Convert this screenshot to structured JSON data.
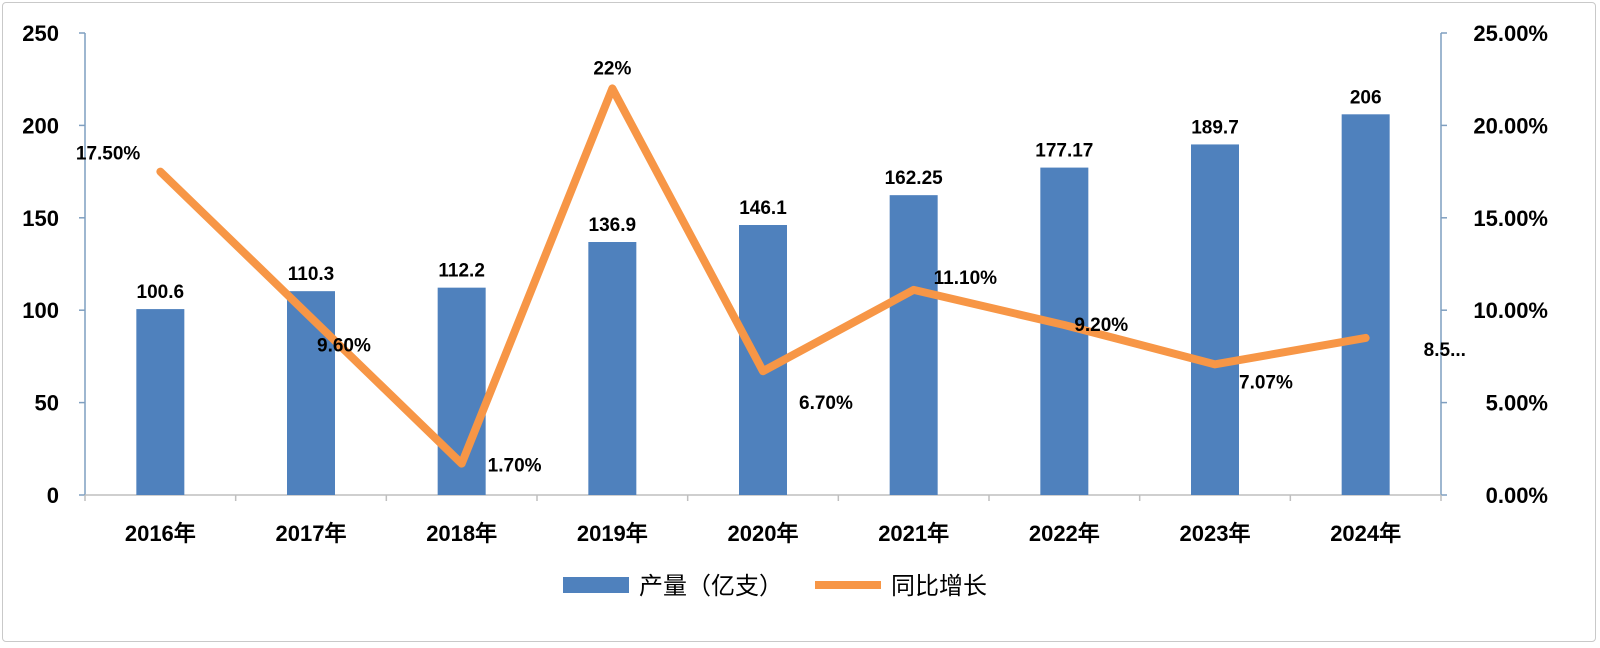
{
  "chart_data": {
    "type": "bar",
    "categories": [
      "2016年",
      "2017年",
      "2018年",
      "2019年",
      "2020年",
      "2021年",
      "2022年",
      "2023年",
      "2024年"
    ],
    "series": [
      {
        "name": "产量（亿支）",
        "type": "bar",
        "axis": "left",
        "color": "#4f81bd",
        "values": [
          100.6,
          110.3,
          112.2,
          136.9,
          146.1,
          162.25,
          177.17,
          189.7,
          206
        ],
        "labels": [
          "100.6",
          "110.3",
          "112.2",
          "136.9",
          "146.1",
          "162.25",
          "177.17",
          "189.7",
          "206"
        ]
      },
      {
        "name": "同比增长",
        "type": "line",
        "axis": "right",
        "color": "#f79646",
        "values": [
          17.5,
          9.6,
          1.7,
          22,
          6.7,
          11.1,
          9.2,
          7.07,
          8.5
        ],
        "labels": [
          "17.50%",
          "9.60%",
          "1.70%",
          "22%",
          "6.70%",
          "11.10%",
          "9.20%",
          "7.07%",
          "8.5..."
        ]
      }
    ],
    "left_axis": {
      "range": [
        0,
        250
      ],
      "ticks": [
        "0",
        "50",
        "100",
        "150",
        "200",
        "250"
      ]
    },
    "right_axis": {
      "range": [
        0,
        25
      ],
      "ticks": [
        "0.00%",
        "5.00%",
        "10.00%",
        "15.00%",
        "20.00%",
        "25.00%"
      ]
    },
    "grid": false,
    "legend": {
      "position": "bottom",
      "items": [
        {
          "label": "产量（亿支）",
          "kind": "bar",
          "color": "#4f81bd"
        },
        {
          "label": "同比增长",
          "kind": "line",
          "color": "#f79646"
        }
      ]
    }
  }
}
